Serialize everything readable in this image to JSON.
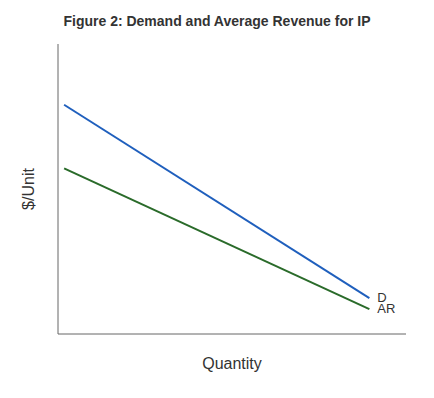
{
  "chart_data": {
    "type": "line",
    "title": "Figure 2:  Demand and Average Revenue for IP",
    "x_label": "Quantity",
    "y_label": "$/Unit",
    "x": [
      0,
      1
    ],
    "series": [
      {
        "name": "D",
        "color": "#1f5fbd",
        "values": [
          0.78,
          0.08
        ]
      },
      {
        "name": "AR",
        "color": "#2a6b2a",
        "values": [
          0.55,
          0.04
        ]
      }
    ],
    "xlim": [
      -0.02,
      1.12
    ],
    "ylim": [
      -0.05,
      1.0
    ],
    "tick_labels": false,
    "grid": false
  }
}
